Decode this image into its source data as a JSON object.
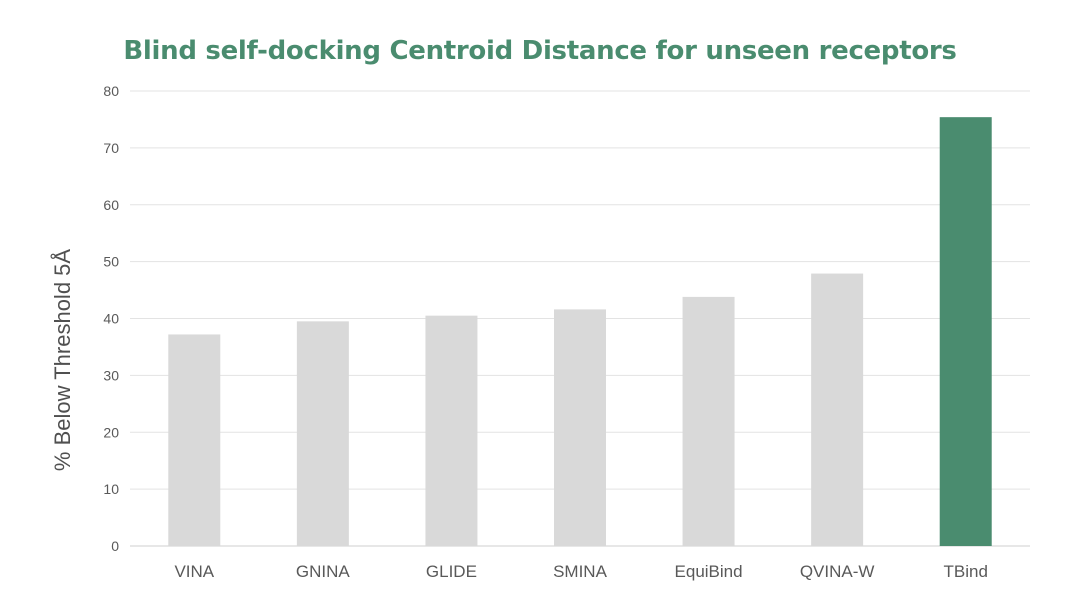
{
  "chart_data": {
    "type": "bar",
    "title": "Blind self-docking Centroid Distance for unseen receptors",
    "ylabel": "% Below Threshold 5Å",
    "xlabel": "",
    "categories": [
      "VINA",
      "GNINA",
      "GLIDE",
      "SMINA",
      "EquiBind",
      "QVINA-W",
      "TBind"
    ],
    "values": [
      37.2,
      39.5,
      40.5,
      41.6,
      43.8,
      47.9,
      75.4
    ],
    "ylim": [
      0,
      80
    ],
    "yticks": [
      "0",
      "10",
      "20",
      "30",
      "40",
      "50",
      "60",
      "70",
      "80"
    ],
    "grid": true,
    "legend": "none",
    "colors": {
      "default_bar": "#d9d9d9",
      "highlight_bar": "#4a8c6f",
      "highlight_category": "TBind",
      "title": "#4a8c6f",
      "grid": "#e3e3e3"
    }
  }
}
